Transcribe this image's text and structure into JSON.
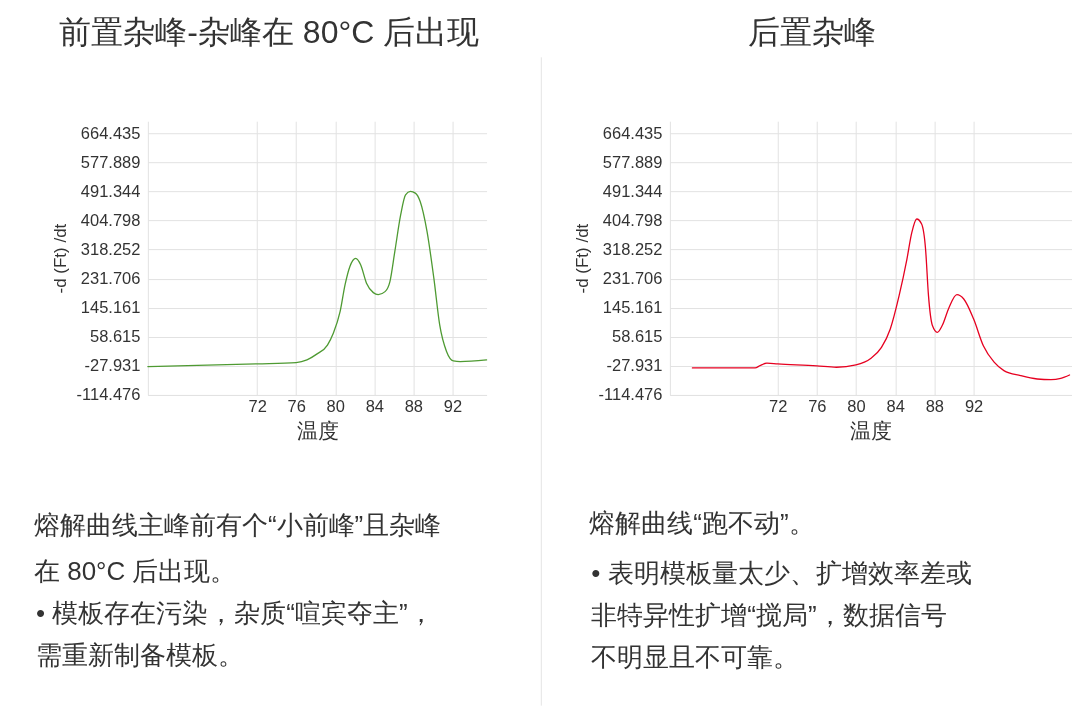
{
  "chart_data": [
    {
      "type": "line",
      "title": "前置杂峰-杂峰在 80°C 后出现",
      "xlabel": "温度",
      "ylabel": "-d (Ft) /dt",
      "x": [
        60.8,
        72,
        76,
        77.1,
        78.1,
        79.2,
        79.8,
        80.5,
        81.0,
        81.5,
        82.1,
        82.6,
        83.2,
        83.9,
        84.4,
        85.1,
        85.6,
        86.1,
        86.7,
        87.2,
        87.7,
        88.2,
        88.7,
        89.4,
        90.1,
        90.7,
        91.4,
        92.1,
        92.8,
        95.5
      ],
      "series": [
        {
          "color": "#4e9a32",
          "values": [
            -30,
            -22,
            -18,
            -10,
            7,
            34,
            69,
            134,
            213,
            268,
            292,
            273,
            218,
            190,
            184,
            193,
            223,
            312,
            421,
            481,
            491,
            486,
            461,
            372,
            233,
            94,
            15,
            -13,
            -15,
            -10
          ]
        }
      ],
      "xlim": [
        60.8,
        95.5
      ],
      "ylim": [
        -114.476,
        700
      ],
      "xticks": [
        72,
        76,
        80,
        84,
        88,
        92
      ],
      "yticks": [
        -114.476,
        -27.931,
        58.615,
        145.161,
        231.706,
        318.252,
        404.798,
        491.344,
        577.889,
        664.435
      ],
      "grid": true,
      "annotations": [
        "熔解曲线主峰前有个“小前峰”且杂峰在 80°C 后出现。",
        "• 模板存在污染，杂质“喧宾夺主”，需重新制备模板。"
      ]
    },
    {
      "type": "line",
      "title": "后置杂峰",
      "xlabel": "温度",
      "ylabel": "-d (Ft) /dt",
      "x": [
        63.3,
        69.7,
        70.2,
        70.9,
        72,
        76,
        78,
        80,
        81.5,
        82.6,
        83.5,
        84.4,
        85.2,
        85.7,
        86.2,
        86.7,
        87.1,
        87.4,
        87.8,
        88.3,
        88.8,
        89.5,
        90.3,
        91,
        92,
        93,
        94.1,
        95.1,
        96.8,
        98.5,
        99.9,
        100.9,
        101.8
      ],
      "series": [
        {
          "color": "#e60020",
          "values": [
            -34,
            -34,
            -27,
            -20,
            -22,
            -28,
            -32,
            -25,
            -6,
            27,
            82,
            181,
            290,
            369,
            409,
            394,
            320,
            181,
            92,
            72,
            92,
            146,
            184,
            171,
            112,
            32,
            -17,
            -42,
            -57,
            -67,
            -69,
            -65,
            -55
          ]
        }
      ],
      "xlim": [
        61,
        102
      ],
      "ylim": [
        -114.476,
        700
      ],
      "xticks": [
        72,
        76,
        80,
        84,
        88,
        92
      ],
      "yticks": [
        -114.476,
        -27.931,
        58.615,
        145.161,
        231.706,
        318.252,
        404.798,
        491.344,
        577.889,
        664.435
      ],
      "grid": true,
      "annotations": [
        "熔解曲线“跑不动”。",
        "• 表明模板量太少、扩增效率差或非特异性扩增“搅局”，数据信号不明显且不可靠。"
      ]
    }
  ]
}
